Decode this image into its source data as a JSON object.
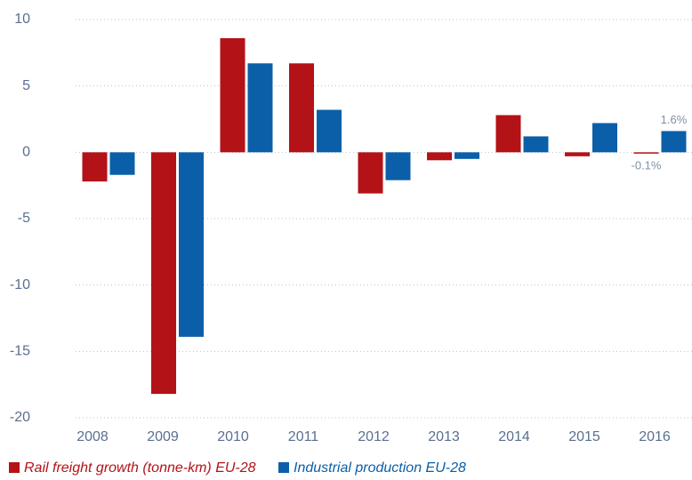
{
  "chart_data": {
    "type": "bar",
    "categories": [
      "2008",
      "2009",
      "2010",
      "2011",
      "2012",
      "2013",
      "2014",
      "2015",
      "2016"
    ],
    "series": [
      {
        "name": "Rail freight growth (tonne-km) EU-28",
        "color": "#b31217",
        "values": [
          -2.2,
          -18.2,
          8.6,
          6.7,
          -3.1,
          -0.6,
          2.8,
          -0.3,
          -0.1
        ],
        "value_labels": [
          null,
          null,
          null,
          null,
          null,
          null,
          null,
          null,
          "-0.1%"
        ]
      },
      {
        "name": "Industrial production EU-28",
        "color": "#0b5fa8",
        "values": [
          -1.7,
          -13.9,
          6.7,
          3.2,
          -2.1,
          -0.5,
          1.2,
          2.2,
          1.6
        ],
        "value_labels": [
          null,
          null,
          null,
          null,
          null,
          null,
          null,
          null,
          "1.6%"
        ]
      }
    ],
    "ylim": [
      -20,
      10
    ],
    "yticks": [
      -20,
      -15,
      -10,
      -5,
      0,
      5,
      10
    ],
    "grid": true
  }
}
